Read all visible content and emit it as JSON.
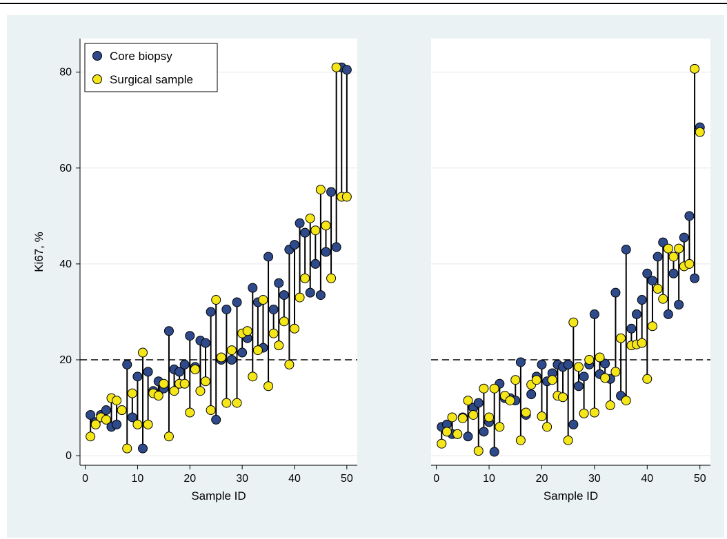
{
  "colors": {
    "background": "#eaf2f3",
    "plot_background": "#ffffff",
    "core": "#2e4a8a",
    "surgical": "#f5e61a",
    "stem": "#000000",
    "marker_edge": "#000000"
  },
  "chart_data": [
    {
      "type": "scatter",
      "title": "",
      "xlabel": "Sample ID",
      "ylabel": "Ki67, %",
      "xlim": [
        -1,
        52
      ],
      "ylim": [
        -2,
        87
      ],
      "xticks": [
        0,
        10,
        20,
        30,
        40,
        50
      ],
      "yticks": [
        0,
        20,
        40,
        60,
        80
      ],
      "reference_line": 20,
      "legend": {
        "placement": "top-left",
        "entries": [
          "Core biopsy",
          "Surgical sample"
        ]
      },
      "x": [
        1,
        2,
        3,
        4,
        5,
        6,
        7,
        8,
        9,
        10,
        11,
        12,
        13,
        14,
        15,
        16,
        17,
        18,
        19,
        20,
        21,
        22,
        23,
        24,
        25,
        26,
        27,
        28,
        29,
        30,
        31,
        32,
        33,
        34,
        35,
        36,
        37,
        38,
        39,
        40,
        41,
        42,
        43,
        44,
        45,
        46,
        47,
        48,
        49,
        50
      ],
      "series": [
        {
          "name": "Core biopsy",
          "values": [
            8.5,
            7,
            8.5,
            9.5,
            6,
            6.5,
            9.5,
            19,
            8,
            16.5,
            1.5,
            17.5,
            13.5,
            15.5,
            14,
            26,
            18,
            17.5,
            19,
            25,
            18.5,
            24,
            23.5,
            30,
            7.5,
            20,
            30.5,
            20,
            32,
            21.5,
            24.5,
            35,
            32,
            22.5,
            41.5,
            30.5,
            36,
            33.5,
            43,
            44,
            48.5,
            46.5,
            34,
            40,
            33.5,
            42.5,
            55,
            43.5,
            81,
            80.5
          ]
        },
        {
          "name": "Surgical sample",
          "values": [
            4,
            6.5,
            8,
            7.5,
            12,
            11.5,
            9.5,
            1.5,
            13,
            6.5,
            21.5,
            6.5,
            13,
            12.5,
            15,
            4,
            13.5,
            15,
            15,
            9,
            18,
            13.5,
            15.5,
            9.5,
            32.5,
            20.5,
            11,
            22,
            11,
            25.5,
            26,
            16.5,
            22,
            32.5,
            14.5,
            25.5,
            23,
            28,
            19,
            26.5,
            33,
            37,
            49.5,
            47,
            55.5,
            48,
            37,
            81,
            54,
            54
          ]
        }
      ]
    },
    {
      "type": "scatter",
      "title": "",
      "xlabel": "Sample ID",
      "ylabel": "",
      "xlim": [
        -1,
        52
      ],
      "ylim": [
        -2,
        87
      ],
      "xticks": [
        0,
        10,
        20,
        30,
        40,
        50
      ],
      "yticks": [
        0,
        20,
        40,
        60,
        80
      ],
      "reference_line": 20,
      "x": [
        1,
        2,
        3,
        4,
        5,
        6,
        7,
        8,
        9,
        10,
        11,
        12,
        13,
        14,
        15,
        16,
        17,
        18,
        19,
        20,
        21,
        22,
        23,
        24,
        25,
        26,
        27,
        28,
        29,
        30,
        31,
        32,
        33,
        34,
        35,
        36,
        37,
        38,
        39,
        40,
        41,
        42,
        43,
        44,
        45,
        46,
        47,
        48,
        49,
        50
      ],
      "series": [
        {
          "name": "Core biopsy",
          "values": [
            6,
            6.5,
            4.5,
            4.5,
            8,
            4,
            10,
            11,
            5,
            7,
            0.8,
            15,
            12,
            12,
            11.5,
            19.5,
            8.5,
            12.8,
            16.5,
            19,
            15.5,
            17.2,
            19,
            18.5,
            19,
            6.5,
            14.5,
            16.5,
            19,
            29.5,
            17,
            19.2,
            16,
            34,
            12.5,
            43,
            26.5,
            29.5,
            32.5,
            38,
            36.5,
            41.5,
            44.5,
            29.5,
            38,
            31.5,
            45.5,
            50,
            37,
            68.5
          ]
        },
        {
          "name": "Surgical sample",
          "values": [
            2.5,
            5,
            8,
            4.5,
            7.8,
            11.5,
            8.5,
            1,
            14,
            8,
            14,
            6,
            12.5,
            11.5,
            15.8,
            3.2,
            9,
            14.8,
            15.8,
            8.2,
            6,
            15.8,
            12.5,
            12.2,
            3.2,
            27.8,
            18.5,
            8.8,
            20,
            9,
            20.5,
            16.2,
            10.5,
            17.5,
            24.5,
            11.5,
            23,
            23.2,
            23.5,
            16,
            27,
            34.8,
            32.7,
            43.2,
            41.5,
            43.2,
            39.5,
            40,
            80.7,
            67.5
          ]
        }
      ]
    }
  ]
}
